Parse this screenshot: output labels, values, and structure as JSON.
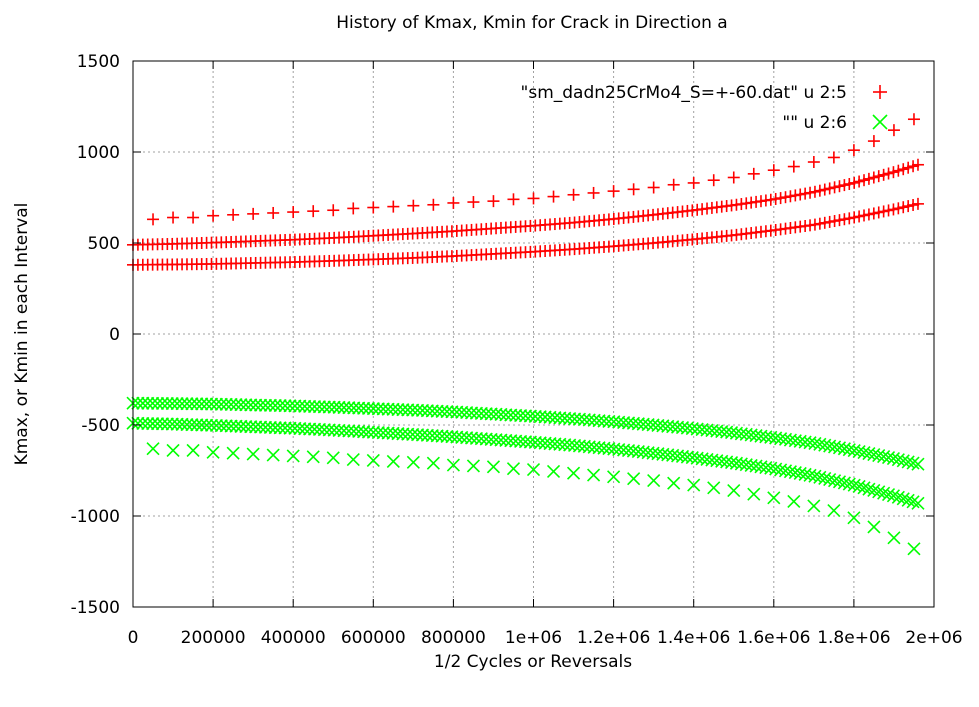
{
  "chart_data": {
    "type": "scatter",
    "title": "History of Kmax, Kmin for Crack in Direction a",
    "xlabel": "1/2 Cycles or Reversals",
    "ylabel": "Kmax, or Kmin in each Interval",
    "xlim": [
      0,
      2000000
    ],
    "ylim": [
      -1500,
      1500
    ],
    "grid": true,
    "legend_position": "top-right",
    "x_ticks": [
      {
        "value": 0,
        "label": "0"
      },
      {
        "value": 200000,
        "label": "200000"
      },
      {
        "value": 400000,
        "label": "400000"
      },
      {
        "value": 600000,
        "label": "600000"
      },
      {
        "value": 800000,
        "label": "800000"
      },
      {
        "value": 1000000,
        "label": "1e+06"
      },
      {
        "value": 1200000,
        "label": "1.2e+06"
      },
      {
        "value": 1400000,
        "label": "1.4e+06"
      },
      {
        "value": 1600000,
        "label": "1.6e+06"
      },
      {
        "value": 1800000,
        "label": "1.8e+06"
      },
      {
        "value": 2000000,
        "label": "2e+06"
      }
    ],
    "y_ticks": [
      {
        "value": 1500,
        "label": "1500"
      },
      {
        "value": 1000,
        "label": "1000"
      },
      {
        "value": 500,
        "label": "500"
      },
      {
        "value": 0,
        "label": "0"
      },
      {
        "value": -500,
        "label": "-500"
      },
      {
        "value": -1000,
        "label": "-1000"
      },
      {
        "value": -1500,
        "label": "-1500"
      }
    ],
    "series": [
      {
        "name": "\"sm_dadn25CrMo4_S=+-60.dat\"  u 2:5",
        "marker": "plus",
        "color": "#ff0000",
        "bands": [
          {
            "x": [
              0,
              100000,
              200000,
              300000,
              400000,
              500000,
              600000,
              700000,
              800000,
              900000,
              1000000,
              1100000,
              1200000,
              1300000,
              1400000,
              1500000,
              1600000,
              1700000,
              1800000,
              1900000,
              1960000
            ],
            "y": [
              380,
              382,
              385,
              390,
              395,
              402,
              410,
              418,
              428,
              440,
              452,
              466,
              482,
              500,
              520,
              543,
              570,
              600,
              640,
              685,
              715
            ]
          },
          {
            "x": [
              0,
              100000,
              200000,
              300000,
              400000,
              500000,
              600000,
              700000,
              800000,
              900000,
              1000000,
              1100000,
              1200000,
              1300000,
              1400000,
              1500000,
              1600000,
              1700000,
              1800000,
              1900000,
              1960000
            ],
            "y": [
              490,
              495,
              502,
              510,
              518,
              528,
              540,
              552,
              565,
              580,
              595,
              612,
              632,
              655,
              680,
              708,
              740,
              780,
              830,
              890,
              930
            ]
          },
          {
            "x": [
              50000,
              100000,
              150000,
              200000,
              250000,
              300000,
              350000,
              400000,
              450000,
              500000,
              550000,
              600000,
              650000,
              700000,
              750000,
              800000,
              850000,
              900000,
              950000,
              1000000,
              1050000,
              1100000,
              1150000,
              1200000,
              1250000,
              1300000,
              1350000,
              1400000,
              1450000,
              1500000,
              1550000,
              1600000,
              1650000,
              1700000,
              1750000,
              1800000,
              1850000,
              1900000,
              1950000
            ],
            "y": [
              630,
              640,
              640,
              650,
              655,
              660,
              665,
              670,
              675,
              680,
              690,
              695,
              700,
              705,
              710,
              720,
              725,
              730,
              740,
              745,
              755,
              765,
              775,
              785,
              795,
              805,
              820,
              830,
              845,
              860,
              880,
              900,
              920,
              945,
              970,
              1010,
              1060,
              1120,
              1180
            ]
          }
        ]
      },
      {
        "name": "\"\" u 2:6",
        "marker": "cross",
        "color": "#00ff00",
        "bands": [
          {
            "x": [
              0,
              100000,
              200000,
              300000,
              400000,
              500000,
              600000,
              700000,
              800000,
              900000,
              1000000,
              1100000,
              1200000,
              1300000,
              1400000,
              1500000,
              1600000,
              1700000,
              1800000,
              1900000,
              1960000
            ],
            "y": [
              -380,
              -382,
              -385,
              -390,
              -395,
              -402,
              -410,
              -418,
              -428,
              -440,
              -452,
              -466,
              -482,
              -500,
              -520,
              -543,
              -570,
              -600,
              -640,
              -685,
              -715
            ]
          },
          {
            "x": [
              0,
              100000,
              200000,
              300000,
              400000,
              500000,
              600000,
              700000,
              800000,
              900000,
              1000000,
              1100000,
              1200000,
              1300000,
              1400000,
              1500000,
              1600000,
              1700000,
              1800000,
              1900000,
              1960000
            ],
            "y": [
              -490,
              -495,
              -502,
              -510,
              -518,
              -528,
              -540,
              -552,
              -565,
              -580,
              -595,
              -612,
              -632,
              -655,
              -680,
              -708,
              -740,
              -780,
              -830,
              -890,
              -930
            ]
          },
          {
            "x": [
              50000,
              100000,
              150000,
              200000,
              250000,
              300000,
              350000,
              400000,
              450000,
              500000,
              550000,
              600000,
              650000,
              700000,
              750000,
              800000,
              850000,
              900000,
              950000,
              1000000,
              1050000,
              1100000,
              1150000,
              1200000,
              1250000,
              1300000,
              1350000,
              1400000,
              1450000,
              1500000,
              1550000,
              1600000,
              1650000,
              1700000,
              1750000,
              1800000,
              1850000,
              1900000,
              1950000
            ],
            "y": [
              -630,
              -640,
              -640,
              -650,
              -655,
              -660,
              -665,
              -670,
              -675,
              -680,
              -690,
              -695,
              -700,
              -705,
              -710,
              -720,
              -725,
              -730,
              -740,
              -745,
              -755,
              -765,
              -775,
              -785,
              -795,
              -805,
              -820,
              -830,
              -845,
              -860,
              -880,
              -900,
              -920,
              -945,
              -970,
              -1010,
              -1060,
              -1120,
              -1180
            ]
          }
        ]
      }
    ]
  }
}
